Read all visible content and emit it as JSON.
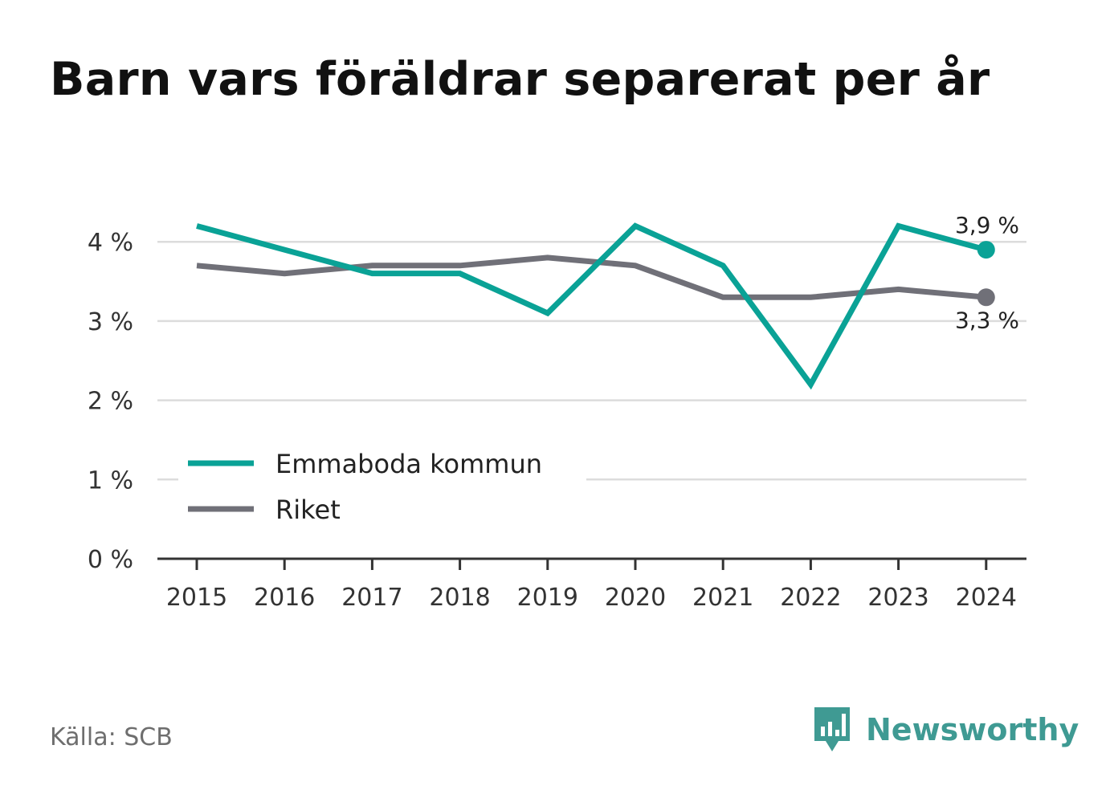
{
  "title": "Barn vars föräldrar separerat per år",
  "source": "Källa: SCB",
  "brand": {
    "name": "Newsworthy",
    "icon": "newsworthy-logo-icon",
    "color": "#3f9a93"
  },
  "chart_data": {
    "type": "line",
    "title": "Barn vars föräldrar separerat per år",
    "x": [
      "2015",
      "2016",
      "2017",
      "2018",
      "2019",
      "2020",
      "2021",
      "2022",
      "2023",
      "2024"
    ],
    "series": [
      {
        "name": "Emmaboda kommun",
        "color": "#0aa296",
        "values": [
          4.2,
          3.9,
          3.6,
          3.6,
          3.1,
          4.2,
          3.7,
          2.2,
          4.2,
          3.9
        ]
      },
      {
        "name": "Riket",
        "color": "#707078",
        "values": [
          3.7,
          3.6,
          3.7,
          3.7,
          3.8,
          3.7,
          3.3,
          3.3,
          3.4,
          3.3
        ]
      }
    ],
    "end_labels": [
      "3,9 %",
      "3,3 %"
    ],
    "y_ticks": [
      0,
      1,
      2,
      3,
      4
    ],
    "y_tick_labels": [
      "0 %",
      "1 %",
      "2 %",
      "3 %",
      "4 %"
    ],
    "ylim": [
      0,
      4.4
    ],
    "grid": true,
    "legend_position": "bottom-left"
  }
}
